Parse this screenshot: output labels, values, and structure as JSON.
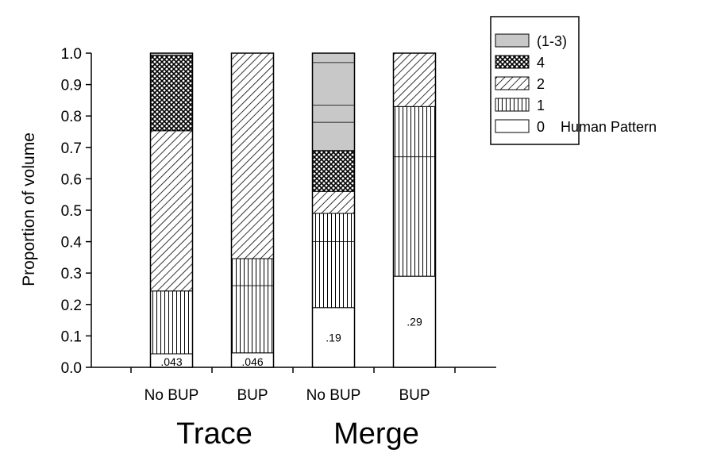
{
  "chart_data": {
    "type": "bar",
    "stacked": true,
    "ylabel": "Proportion of volume",
    "ylim": [
      0,
      1.0
    ],
    "yticks": [
      "0.0",
      "0.1",
      "0.2",
      "0.3",
      "0.4",
      "0.5",
      "0.6",
      "0.7",
      "0.8",
      "0.9",
      "1.0"
    ],
    "categories": [
      "No BUP",
      "BUP",
      "No BUP",
      "BUP"
    ],
    "groups": [
      {
        "label": "Trace",
        "categories": [
          0,
          1
        ]
      },
      {
        "label": "Merge",
        "categories": [
          2,
          3
        ]
      }
    ],
    "series": [
      {
        "name": "0",
        "pattern": "blank",
        "values": [
          0.043,
          0.046,
          0.19,
          0.29
        ]
      },
      {
        "name": "1",
        "pattern": "vertical",
        "values": [
          0.2,
          0.3,
          0.3,
          0.54
        ]
      },
      {
        "name": "2",
        "pattern": "diagonal",
        "values": [
          0.51,
          0.654,
          0.07,
          0.17
        ]
      },
      {
        "name": "4",
        "pattern": "crosshatch",
        "values": [
          0.24,
          0.0,
          0.13,
          0.0
        ]
      },
      {
        "name": "(1-3)",
        "pattern": "gray",
        "color": "#c8c8c8",
        "values": [
          0.007,
          0.0,
          0.31,
          0.0
        ]
      }
    ],
    "inner_lines": [
      [],
      [
        0.26
      ],
      [
        0.4,
        0.78,
        0.835,
        0.97
      ],
      [
        0.67
      ]
    ],
    "bar_labels": [
      ".043",
      ".046",
      ".19",
      ".29"
    ],
    "legend": {
      "position": "top-right",
      "items": [
        "(1-3)",
        "4",
        "2",
        "1",
        "0"
      ],
      "note": "Human Pattern"
    }
  }
}
